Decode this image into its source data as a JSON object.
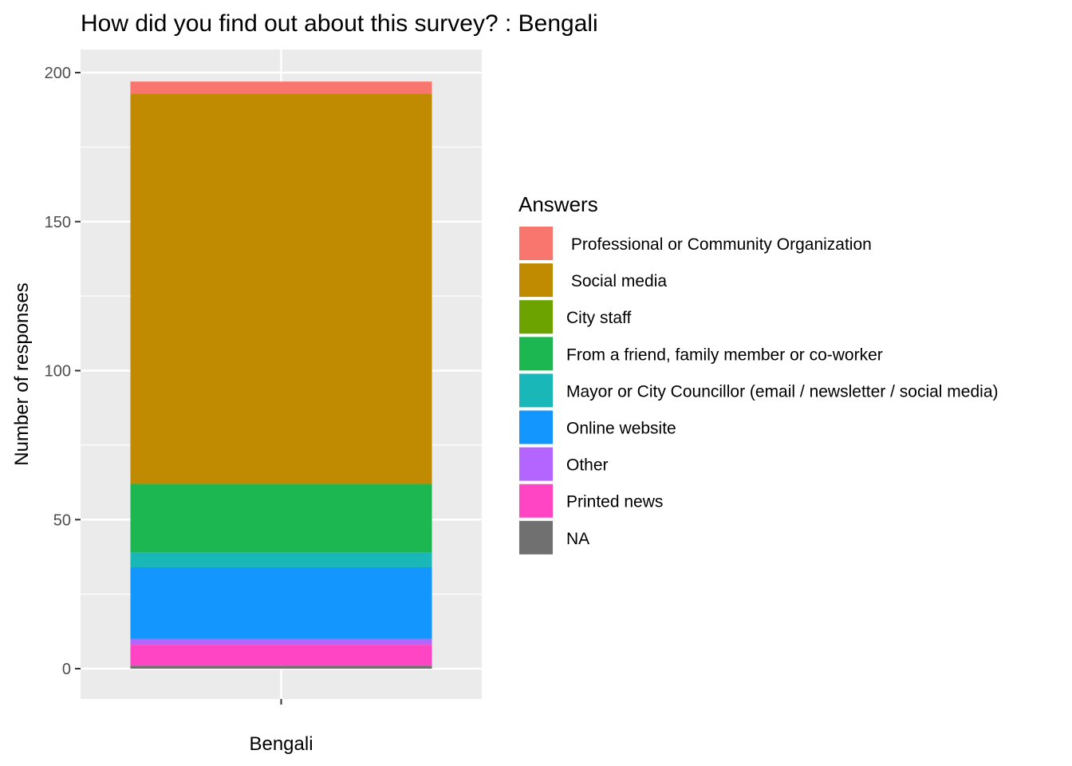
{
  "chart_data": {
    "type": "bar",
    "stacked": true,
    "title": "How did you find out about this survey? : Bengali",
    "xlabel": "",
    "ylabel": "Number of responses",
    "categories": [
      "Bengali"
    ],
    "ylim": [
      0,
      207
    ],
    "yticks": [
      0,
      50,
      100,
      150,
      200
    ],
    "grid": true,
    "legend": {
      "title": "Answers",
      "placement": "right"
    },
    "series": [
      {
        "name": " Professional or Community Organization",
        "color": "#F8766D",
        "values": [
          4
        ]
      },
      {
        "name": " Social media",
        "color": "#C08B00",
        "values": [
          131
        ]
      },
      {
        "name": "City staff",
        "color": "#6CA300",
        "values": [
          0
        ]
      },
      {
        "name": "From a friend, family member or co-worker",
        "color": "#1CB751",
        "values": [
          23
        ]
      },
      {
        "name": "Mayor or City Councillor (email / newsletter / social media)",
        "color": "#19B7B7",
        "values": [
          5
        ]
      },
      {
        "name": "Online website",
        "color": "#1496FF",
        "values": [
          24
        ]
      },
      {
        "name": "Other",
        "color": "#B565FF",
        "values": [
          2
        ]
      },
      {
        "name": "Printed news",
        "color": "#FF45C4",
        "values": [
          7
        ]
      },
      {
        "name": "NA",
        "color": "#707070",
        "values": [
          1
        ]
      }
    ],
    "stack_order_bottom_to_top": [
      "NA",
      "Printed news",
      "Other",
      "Online website",
      "Mayor or City Councillor (email / newsletter / social media)",
      "From a friend, family member or co-worker",
      "City staff",
      " Social media",
      " Professional or Community Organization"
    ]
  }
}
